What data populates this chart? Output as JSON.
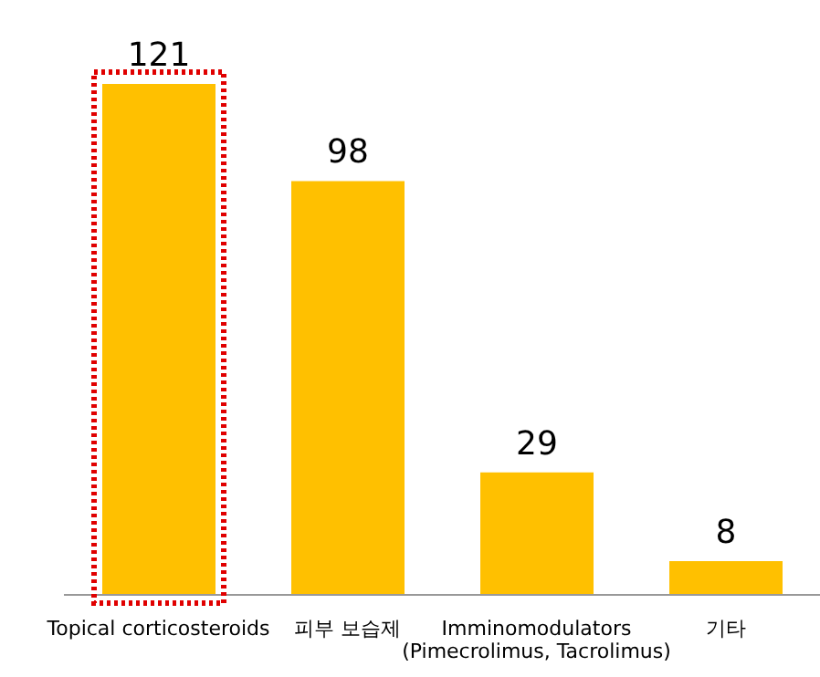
{
  "chart_data": {
    "type": "bar",
    "categories": [
      "Topical corticosteroids",
      "피부 보습제",
      "Imminomodulators\n(Pimecrolimus, Tacrolimus)",
      "기타"
    ],
    "values": [
      121,
      98,
      29,
      8
    ],
    "color": "#ffc000",
    "tick_labels": "x",
    "data_labels": true,
    "grid": false
  }
}
